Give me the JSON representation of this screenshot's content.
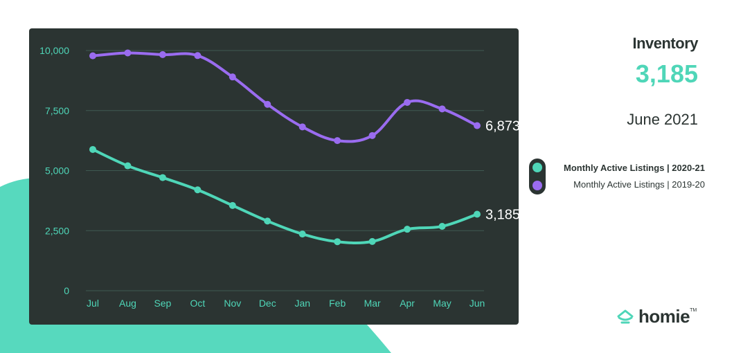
{
  "header": {
    "title": "Inventory",
    "value": "3,185",
    "date": "June 2021"
  },
  "colors": {
    "accent": "#4fd6b8",
    "purple": "#9a6cf0",
    "panel": "#2b3432"
  },
  "legend": {
    "items": [
      {
        "label": "Monthly Active Listings |  2020-21",
        "color": "#4fd6b8",
        "bold": true
      },
      {
        "label": "Monthly Active Listings |  2019-20",
        "color": "#9a6cf0",
        "bold": false
      }
    ]
  },
  "logo": {
    "icon": "house-icon",
    "text": "homie",
    "tm": "TM"
  },
  "chart_data": {
    "type": "line",
    "categories": [
      "Jul",
      "Aug",
      "Sep",
      "Oct",
      "Nov",
      "Dec",
      "Jan",
      "Feb",
      "Mar",
      "Apr",
      "May",
      "Jun"
    ],
    "ylim": [
      0,
      10000
    ],
    "yticks": [
      0,
      2500,
      5000,
      7500,
      10000
    ],
    "ytick_labels": [
      "0",
      "2,500",
      "5,000",
      "7,500",
      "10,000"
    ],
    "grid": true,
    "legend_placement": "right",
    "series": [
      {
        "name": "Monthly Active Listings |  2019-20",
        "color": "#9a6cf0",
        "values": [
          9780,
          9900,
          9830,
          9790,
          8900,
          7760,
          6820,
          6250,
          6460,
          7840,
          7570,
          6873
        ],
        "end_label": "6,873"
      },
      {
        "name": "Monthly Active Listings |  2020-21",
        "color": "#4fd6b8",
        "values": [
          5880,
          5200,
          4710,
          4200,
          3550,
          2900,
          2360,
          2040,
          2050,
          2560,
          2680,
          3185
        ],
        "end_label": "3,185"
      }
    ]
  }
}
